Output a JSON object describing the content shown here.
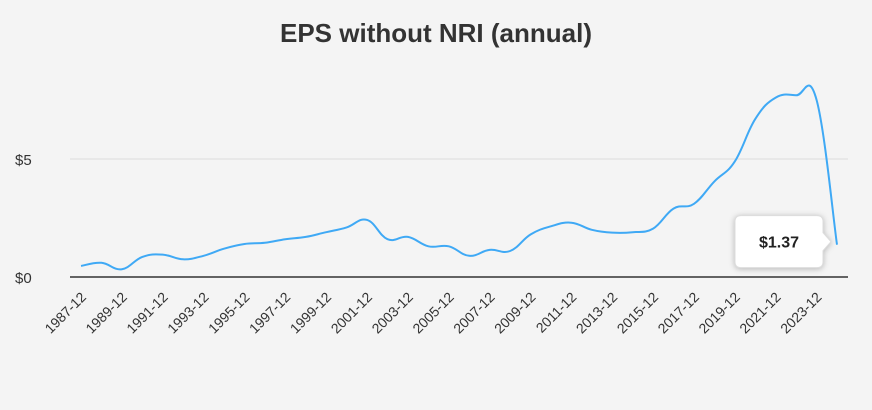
{
  "chart_data": {
    "type": "line",
    "title": "EPS without NRI (annual)",
    "xlabel": "",
    "ylabel": "",
    "x_ticks": [
      "1987-12",
      "1989-12",
      "1991-12",
      "1993-12",
      "1995-12",
      "1997-12",
      "1999-12",
      "2001-12",
      "2003-12",
      "2005-12",
      "2007-12",
      "2009-12",
      "2011-12",
      "2013-12",
      "2015-12",
      "2017-12",
      "2019-12",
      "2021-12",
      "2023-12"
    ],
    "y_ticks": [
      {
        "value": 0,
        "label": "$0"
      },
      {
        "value": 5,
        "label": "$5"
      }
    ],
    "ylim": [
      0,
      8.5
    ],
    "grid": true,
    "legend": "none",
    "series": [
      {
        "color": "#3fa9f5",
        "x": [
          "1987-12",
          "1988-12",
          "1989-12",
          "1990-12",
          "1991-12",
          "1992-12",
          "1993-12",
          "1994-12",
          "1995-12",
          "1996-12",
          "1997-12",
          "1998-12",
          "1999-12",
          "2000-12",
          "2001-12",
          "2002-12",
          "2003-12",
          "2004-12",
          "2005-12",
          "2006-12",
          "2007-12",
          "2008-12",
          "2009-12",
          "2010-12",
          "2011-12",
          "2012-12",
          "2013-12",
          "2014-12",
          "2015-12",
          "2016-12",
          "2017-12",
          "2018-12",
          "2019-12",
          "2020-12",
          "2021-12",
          "2022-12",
          "2023-12",
          "2024-12"
        ],
        "values": [
          0.47,
          0.6,
          0.33,
          0.85,
          0.95,
          0.75,
          0.9,
          1.2,
          1.4,
          1.45,
          1.6,
          1.7,
          1.9,
          2.1,
          2.42,
          1.6,
          1.7,
          1.3,
          1.3,
          0.9,
          1.15,
          1.1,
          1.8,
          2.15,
          2.3,
          2.0,
          1.88,
          1.9,
          2.05,
          2.9,
          3.1,
          4.05,
          4.9,
          6.7,
          7.6,
          7.7,
          7.5,
          1.37
        ]
      }
    ],
    "annotation": {
      "label": "$1.37",
      "x": "2024-12",
      "value": 1.37
    }
  }
}
